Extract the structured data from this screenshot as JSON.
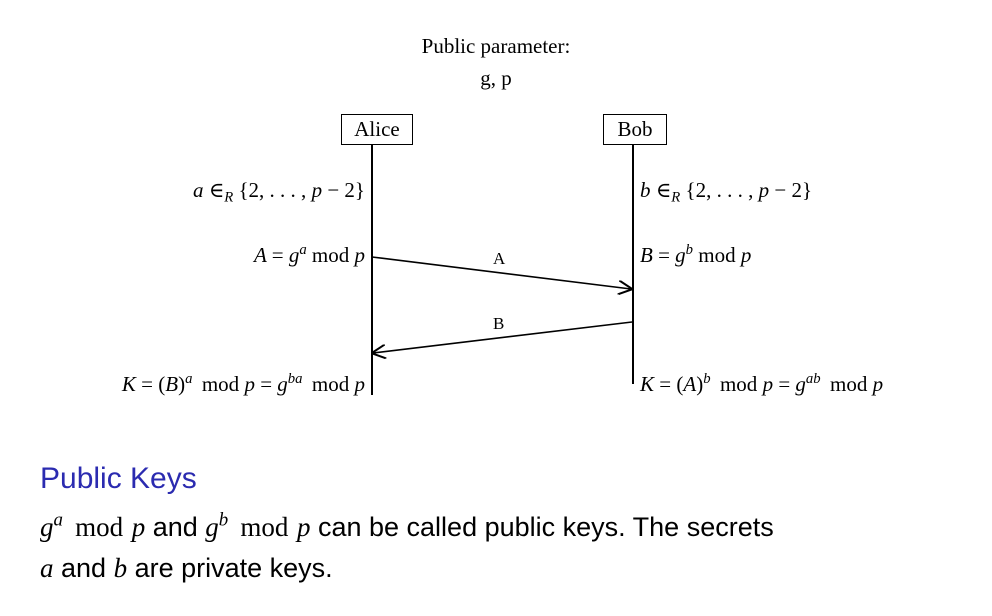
{
  "header": {
    "title": "Public parameter:",
    "values": "g, p"
  },
  "parties": {
    "alice": "Alice",
    "bob": "Bob"
  },
  "alice": {
    "choose": "a ∈R {2, . . . , p − 2}",
    "public": "A = g^a mod p",
    "key": "K = (B)^a mod p = g^ba mod p"
  },
  "bob": {
    "choose": "b ∈R {2, . . . , p − 2}",
    "public": "B = g^b mod p",
    "key": "K = (A)^b mod p = g^ab mod p"
  },
  "messages": {
    "to_bob": "A",
    "to_alice": "B"
  },
  "section": {
    "heading": "Public Keys",
    "line1_text1": " and ",
    "line1_text2": " can be called public keys. The secrets",
    "line2_text": " are private keys."
  },
  "colors": {
    "heading": "#2b2bb0",
    "ink": "#000000"
  }
}
